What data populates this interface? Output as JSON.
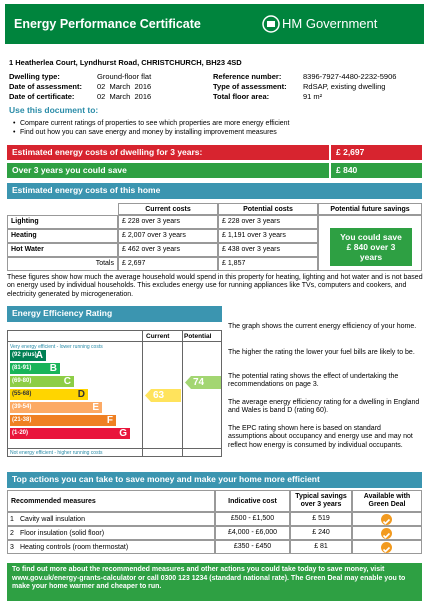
{
  "header": {
    "title": "Energy Performance Certificate",
    "government": "HM Government"
  },
  "address": "1 Heatherlea Court, Lyndhurst Road, CHRISTCHURCH, BH23 4SD",
  "details": [
    {
      "label": "Dwelling type:",
      "value": "Ground-floor flat"
    },
    {
      "label": "Reference number:",
      "value": "8396-7927-4480-2232-5906"
    },
    {
      "label": "Date of assessment:",
      "value": "02  March  2016"
    },
    {
      "label": "Type of assessment:",
      "value": "RdSAP, existing dwelling"
    },
    {
      "label": "Date of certificate:",
      "value": "02  March  2016"
    },
    {
      "label": "Total floor area:",
      "value": "91 m²"
    }
  ],
  "use": {
    "title": "Use this document to:",
    "items": [
      "Compare current ratings of properties to see which properties are more energy efficient",
      "Find out how you can save energy and money by installing improvement measures"
    ]
  },
  "summary": {
    "cost_label": "Estimated energy costs of dwelling for 3 years:",
    "cost": "£ 2,697",
    "save_label": "Over 3 years you could save",
    "save": "£ 840"
  },
  "costs": {
    "title": "Estimated energy costs of this home",
    "headers": [
      "Current costs",
      "Potential costs",
      "Potential future savings"
    ],
    "rows": [
      [
        "Lighting",
        "£ 228 over 3 years",
        "£ 228 over 3 years"
      ],
      [
        "Heating",
        "£ 2,007 over 3 years",
        "£ 1,191 over 3 years"
      ],
      [
        "Hot Water",
        "£ 462 over 3 years",
        "£ 438 over 3 years"
      ]
    ],
    "totals": {
      "label": "Totals",
      "current": "£ 2,697",
      "potential": "£ 1,857"
    },
    "savings_box": "You could save £ 840 over 3 years"
  },
  "note": "These figures show how much the average household would spend in this property for heating, lighting and hot water and is not based on energy used by individual households. This excludes energy use for running appliances like TVs, computers and cookers, and electricity generated by microgeneration.",
  "rating": {
    "title": "Energy Efficiency Rating",
    "columns": [
      "Current",
      "Potential"
    ],
    "top_label": "Very energy efficient - lower running costs",
    "bottom_label": "Not energy efficient - higher running costs",
    "bands": [
      {
        "range": "(92 plus)",
        "letter": "A"
      },
      {
        "range": "(81-91)",
        "letter": "B"
      },
      {
        "range": "(69-80)",
        "letter": "C"
      },
      {
        "range": "(55-68)",
        "letter": "D"
      },
      {
        "range": "(39-54)",
        "letter": "E"
      },
      {
        "range": "(21-38)",
        "letter": "F"
      },
      {
        "range": "(1-20)",
        "letter": "G"
      }
    ],
    "current": 63,
    "potential": 74,
    "paragraphs": [
      "The graph shows the current energy efficiency of your home.",
      "The higher the rating the lower your fuel bills are likely to be.",
      "The potential rating shows the effect of undertaking the recommendations on page 3.",
      "The average energy efficiency rating for a dwelling in England and Wales is band D (rating 60).",
      "The EPC rating shown here is based on standard assumptions about occupancy and energy use and may not reflect how energy is consumed by individual occupants."
    ]
  },
  "actions": {
    "title": "Top actions you can take to save money and make your home more efficient",
    "headers": [
      "Recommended measures",
      "Indicative cost",
      "Typical savings over 3 years",
      "Available with Green Deal"
    ],
    "rows": [
      [
        "1",
        "Cavity wall insulation",
        "£500 - £1,500",
        "£ 519"
      ],
      [
        "2",
        "Floor insulation (solid floor)",
        "£4,000 - £6,000",
        "£ 240"
      ],
      [
        "3",
        "Heating controls (room thermostat)",
        "£350 - £450",
        "£ 81"
      ]
    ]
  },
  "footer": "To find out more about the recommended measures and other actions you could take today to save money, visit www.gov.uk/energy-grants-calculator or call 0300 123 1234 (standard national rate). The Green Deal may enable you to make your home warmer and cheaper to run."
}
